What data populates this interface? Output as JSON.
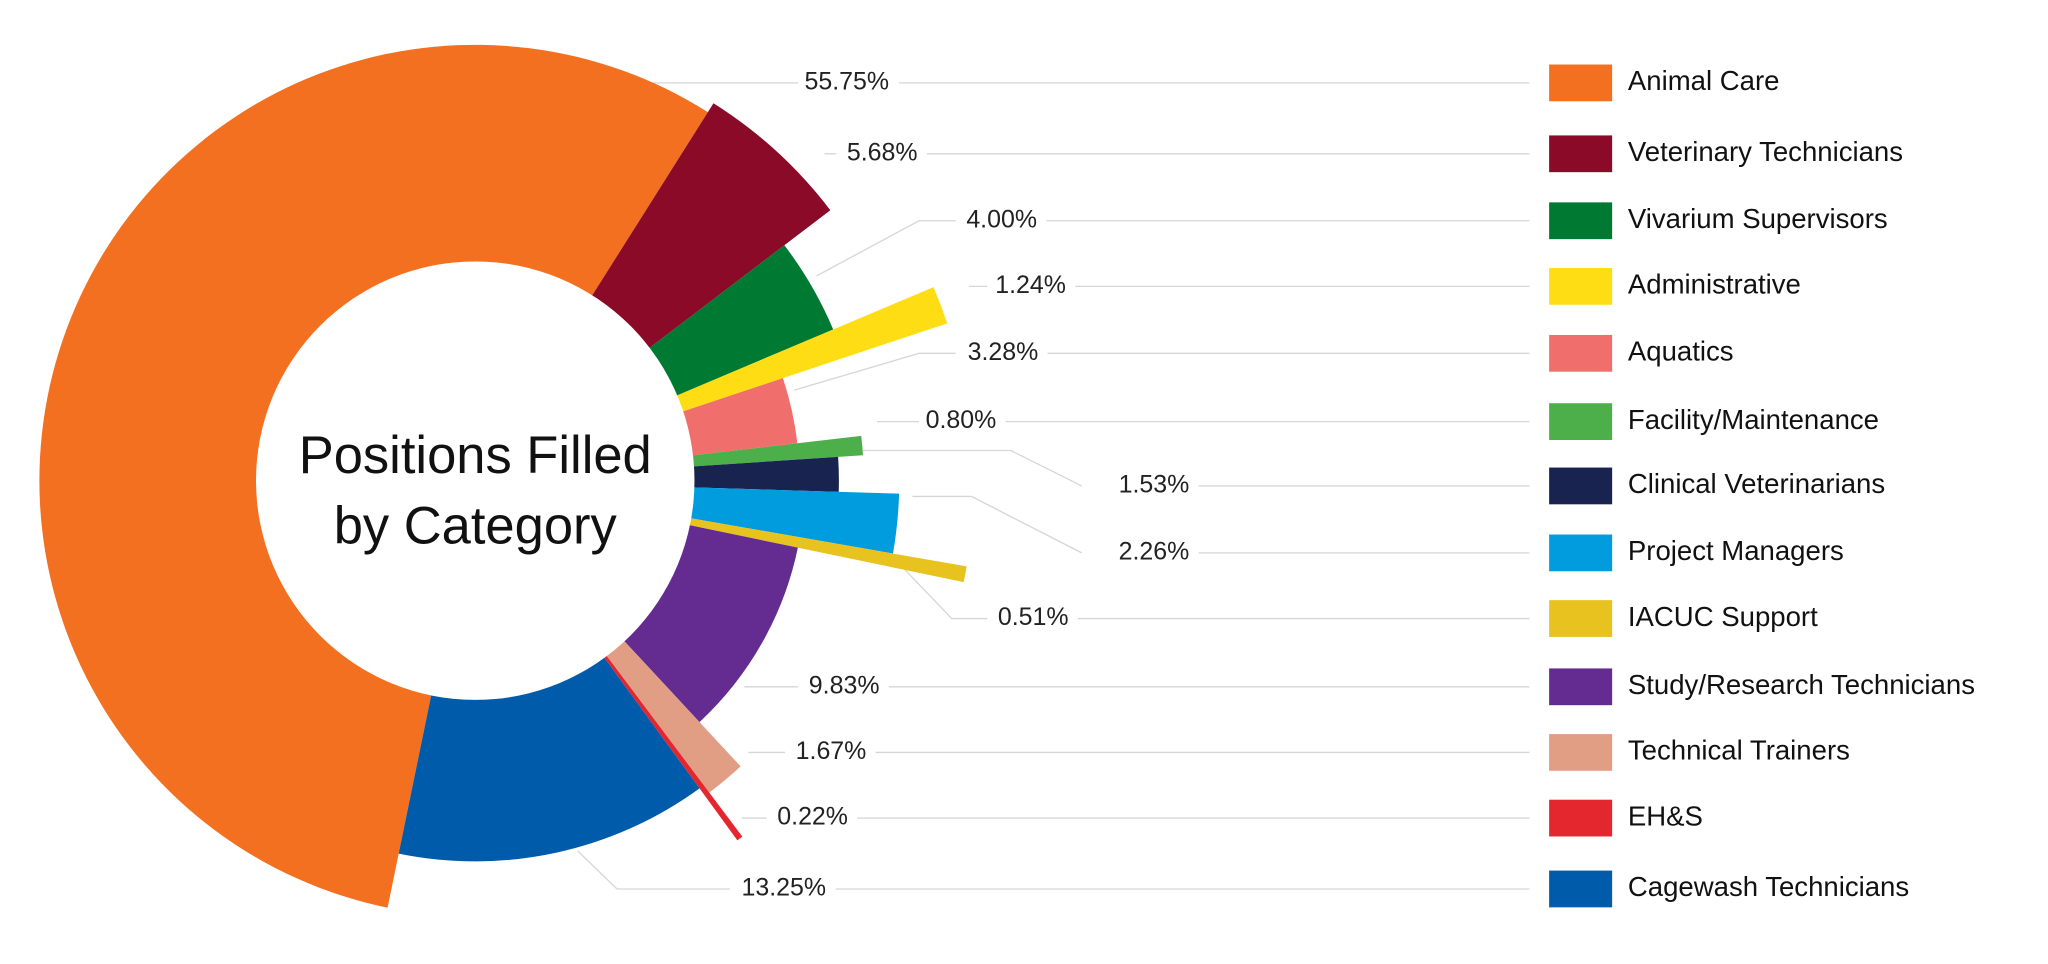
{
  "chart_data": {
    "type": "pie",
    "title": [
      "Positions Filled",
      "by Category"
    ],
    "categories": [
      "Animal Care",
      "Veterinary Technicians",
      "Vivarium Supervisors",
      "Administrative",
      "Aquatics",
      "Facility/Maintenance",
      "Clinical Veterinarians",
      "Project Managers",
      "IACUC Support",
      "Study/Research Technicians",
      "Technical Trainers",
      "EH&S",
      "Cagewash Technicians"
    ],
    "values": [
      55.75,
      5.68,
      4.0,
      1.24,
      3.28,
      0.8,
      1.53,
      2.26,
      0.51,
      9.83,
      1.67,
      0.22,
      13.25
    ],
    "labels": [
      "55.75%",
      "5.68%",
      "4.00%",
      "1.24%",
      "3.28%",
      "0.80%",
      "1.53%",
      "2.26%",
      "0.51%",
      "9.83%",
      "1.67%",
      "0.22%",
      "13.25%"
    ],
    "colors": [
      "#F37021",
      "#8A0A28",
      "#007A33",
      "#FFDD15",
      "#F06E6C",
      "#4DAF4A",
      "#18244F",
      "#009CDE",
      "#E8C21F",
      "#642C91",
      "#E29E84",
      "#E4262E",
      "#005BAA"
    ],
    "legend_position": "right",
    "unit": "%"
  }
}
